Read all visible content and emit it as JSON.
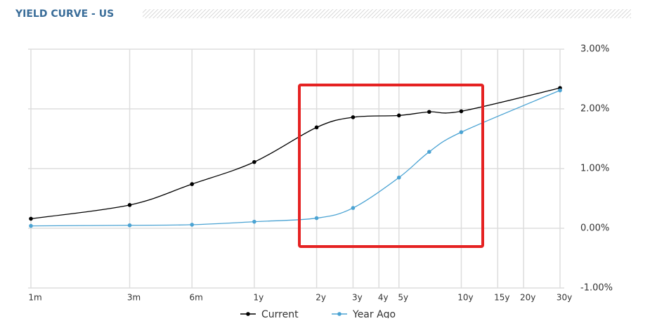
{
  "chart_data": {
    "type": "line",
    "title": "YIELD CURVE - US",
    "x": [
      1,
      3,
      6,
      12,
      24,
      36,
      60,
      84,
      120,
      360
    ],
    "xscale": "log",
    "xlim": [
      1,
      360
    ],
    "xticks": [
      {
        "value": 1,
        "label": "1m"
      },
      {
        "value": 3,
        "label": "3m"
      },
      {
        "value": 6,
        "label": "6m"
      },
      {
        "value": 12,
        "label": "1y"
      },
      {
        "value": 24,
        "label": "2y"
      },
      {
        "value": 36,
        "label": "3y"
      },
      {
        "value": 48,
        "label": "4y"
      },
      {
        "value": 60,
        "label": "5y"
      },
      {
        "value": 120,
        "label": "10y"
      },
      {
        "value": 180,
        "label": "15y"
      },
      {
        "value": 240,
        "label": "20y"
      },
      {
        "value": 360,
        "label": "30y"
      }
    ],
    "ylim": [
      -1,
      3
    ],
    "yticks": [
      {
        "value": -1,
        "label": "-1.00%"
      },
      {
        "value": 0,
        "label": "0.00%"
      },
      {
        "value": 1,
        "label": "1.00%"
      },
      {
        "value": 2,
        "label": "2.00%"
      },
      {
        "value": 3,
        "label": "3.00%"
      }
    ],
    "grid": true,
    "series": [
      {
        "name": "Current",
        "color": "#000000",
        "values": [
          0.16,
          0.39,
          0.74,
          1.11,
          1.69,
          1.86,
          1.89,
          1.95,
          1.96,
          2.35
        ]
      },
      {
        "name": "Year Ago",
        "color": "#4ba3d3",
        "values": [
          0.04,
          0.05,
          0.06,
          0.11,
          0.17,
          0.34,
          0.85,
          1.28,
          1.61,
          2.31
        ]
      }
    ]
  }
}
